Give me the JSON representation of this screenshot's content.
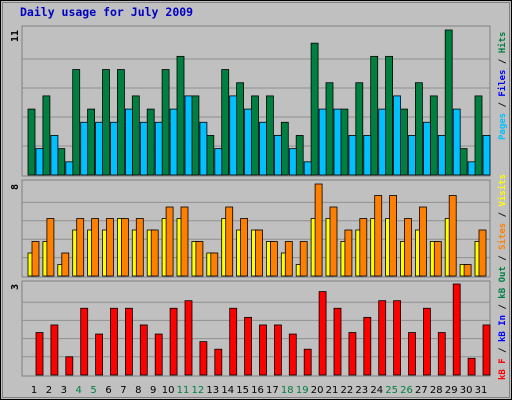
{
  "title": "Daily usage for July 2009",
  "separator": "/",
  "chart_data": [
    {
      "type": "bar",
      "ylim": [
        0,
        11
      ],
      "yticks": [
        11
      ],
      "grid": true,
      "series": [
        {
          "name": "Pages",
          "color": "#00c0ff",
          "values": [
            2,
            3,
            1,
            4,
            4,
            4,
            5,
            4,
            4,
            5,
            6,
            4,
            2,
            6,
            5,
            4,
            3,
            2,
            1,
            5,
            5,
            3,
            3,
            5,
            6,
            3,
            4,
            3,
            5,
            1,
            3
          ]
        },
        {
          "name": "Files",
          "color": "#0000ff",
          "values": [
            null,
            null,
            null,
            null,
            null,
            null,
            null,
            null,
            null,
            null,
            null,
            null,
            null,
            null,
            null,
            null,
            null,
            null,
            null,
            null,
            null,
            null,
            null,
            null,
            null,
            null,
            null,
            null,
            null,
            null,
            null
          ]
        },
        {
          "name": "Hits",
          "color": "#008040",
          "values": [
            5,
            6,
            2,
            8,
            5,
            8,
            8,
            6,
            5,
            8,
            9,
            6,
            3,
            8,
            7,
            6,
            6,
            4,
            3,
            10,
            7,
            5,
            7,
            9,
            9,
            5,
            7,
            6,
            11,
            2,
            6
          ]
        }
      ]
    },
    {
      "type": "bar",
      "ylim": [
        0,
        8
      ],
      "yticks": [
        8
      ],
      "grid": true,
      "series": [
        {
          "name": "Sites",
          "color": "#ff8000",
          "values": [
            3,
            5,
            2,
            5,
            5,
            5,
            5,
            5,
            4,
            6,
            6,
            3,
            2,
            6,
            5,
            4,
            3,
            3,
            3,
            8,
            6,
            4,
            5,
            7,
            7,
            5,
            6,
            3,
            7,
            1,
            4
          ]
        },
        {
          "name": "Visits",
          "color": "#ffff00",
          "values": [
            2,
            3,
            1,
            4,
            4,
            4,
            5,
            4,
            4,
            5,
            5,
            3,
            2,
            5,
            4,
            4,
            3,
            2,
            1,
            5,
            5,
            3,
            4,
            5,
            5,
            3,
            4,
            3,
            5,
            1,
            3
          ]
        }
      ]
    },
    {
      "type": "bar",
      "ylim": [
        0,
        3
      ],
      "yticks": [
        3
      ],
      "grid": true,
      "categories": [
        "1",
        "2",
        "3",
        "4",
        "5",
        "6",
        "7",
        "8",
        "9",
        "10",
        "11",
        "12",
        "13",
        "14",
        "15",
        "16",
        "17",
        "18",
        "19",
        "20",
        "21",
        "22",
        "23",
        "24",
        "25",
        "26",
        "27",
        "28",
        "29",
        "30",
        "31"
      ],
      "highlight_indices": [
        3,
        4,
        10,
        11,
        17,
        18,
        24,
        25
      ],
      "highlight_color": "#008040",
      "series": [
        {
          "name": "kB F",
          "color": "#ff0000",
          "values": [
            1.4,
            1.65,
            0.6,
            2.2,
            1.35,
            2.2,
            2.2,
            1.65,
            1.35,
            2.2,
            2.45,
            1.1,
            0.85,
            2.2,
            1.9,
            1.65,
            1.65,
            1.35,
            0.85,
            2.75,
            2.2,
            1.4,
            1.9,
            2.45,
            2.45,
            1.4,
            2.2,
            1.4,
            3.0,
            0.55,
            1.65
          ]
        },
        {
          "name": "kB In",
          "color": "#0000ff",
          "values": [
            null,
            null,
            null,
            null,
            null,
            null,
            null,
            null,
            null,
            null,
            null,
            null,
            null,
            null,
            null,
            null,
            null,
            null,
            null,
            null,
            null,
            null,
            null,
            null,
            null,
            null,
            null,
            null,
            null,
            null,
            null
          ]
        },
        {
          "name": "kB Out",
          "color": "#008040",
          "values": [
            null,
            null,
            null,
            null,
            null,
            null,
            null,
            null,
            null,
            null,
            null,
            null,
            null,
            null,
            null,
            null,
            null,
            null,
            null,
            null,
            null,
            null,
            null,
            null,
            null,
            null,
            null,
            null,
            null,
            null,
            null
          ]
        }
      ]
    }
  ]
}
